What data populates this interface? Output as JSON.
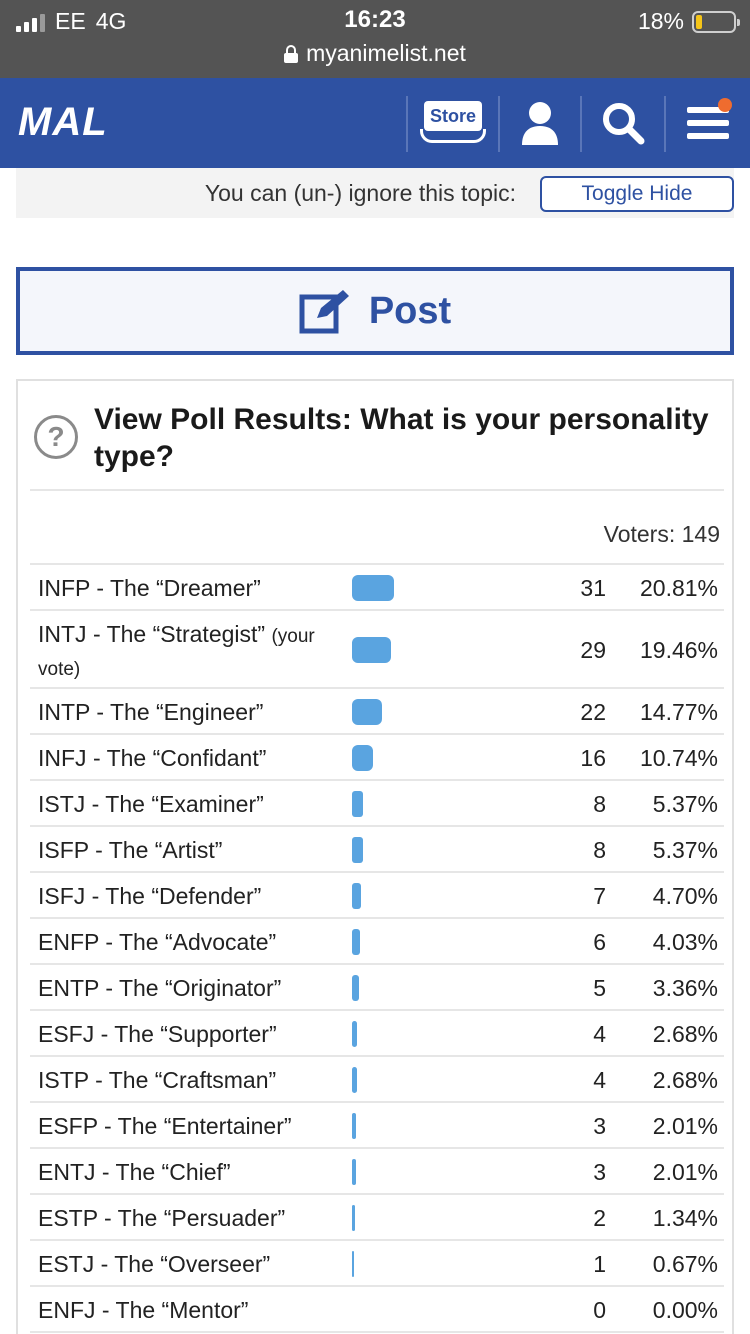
{
  "status_bar": {
    "carrier": "EE",
    "network": "4G",
    "time": "16:23",
    "battery": "18%",
    "battery_level": 0.18,
    "url": "myanimelist.net"
  },
  "header": {
    "logo": "MAL",
    "store_label": "Store",
    "icons": [
      "store-icon",
      "profile-icon",
      "search-icon",
      "menu-icon"
    ],
    "brand_color": "#2e51a2",
    "notification_color": "#ef6c2f"
  },
  "ignore_bar": {
    "text": "You can (un-) ignore this topic:",
    "button": "Toggle Hide"
  },
  "post_button": {
    "label": "Post"
  },
  "poll": {
    "title": "View Poll Results: What is your personality type?",
    "voters": "Voters: 149",
    "bar_color": "#5aa4e0",
    "options": [
      {
        "label": "INFP - The “Dreamer”",
        "note": "",
        "count": "31",
        "percent": "20.81%",
        "share": 0.2081
      },
      {
        "label": "INTJ - The “Strategist”",
        "note": "(your vote)",
        "count": "29",
        "percent": "19.46%",
        "share": 0.1946
      },
      {
        "label": "INTP - The “Engineer”",
        "note": "",
        "count": "22",
        "percent": "14.77%",
        "share": 0.1477
      },
      {
        "label": "INFJ - The “Confidant”",
        "note": "",
        "count": "16",
        "percent": "10.74%",
        "share": 0.1074
      },
      {
        "label": "ISTJ - The “Examiner”",
        "note": "",
        "count": "8",
        "percent": "5.37%",
        "share": 0.0537
      },
      {
        "label": "ISFP - The “Artist”",
        "note": "",
        "count": "8",
        "percent": "5.37%",
        "share": 0.0537
      },
      {
        "label": "ISFJ - The “Defender”",
        "note": "",
        "count": "7",
        "percent": "4.70%",
        "share": 0.047
      },
      {
        "label": "ENFP - The “Advocate”",
        "note": "",
        "count": "6",
        "percent": "4.03%",
        "share": 0.0403
      },
      {
        "label": "ENTP - The “Originator”",
        "note": "",
        "count": "5",
        "percent": "3.36%",
        "share": 0.0336
      },
      {
        "label": "ESFJ - The “Supporter”",
        "note": "",
        "count": "4",
        "percent": "2.68%",
        "share": 0.0268
      },
      {
        "label": "ISTP - The “Craftsman”",
        "note": "",
        "count": "4",
        "percent": "2.68%",
        "share": 0.0268
      },
      {
        "label": "ESFP - The “Entertainer”",
        "note": "",
        "count": "3",
        "percent": "2.01%",
        "share": 0.0201
      },
      {
        "label": "ENTJ - The “Chief”",
        "note": "",
        "count": "3",
        "percent": "2.01%",
        "share": 0.0201
      },
      {
        "label": "ESTP - The “Persuader”",
        "note": "",
        "count": "2",
        "percent": "1.34%",
        "share": 0.0134
      },
      {
        "label": "ESTJ - The “Overseer”",
        "note": "",
        "count": "1",
        "percent": "0.67%",
        "share": 0.0067
      },
      {
        "label": "ENFJ - The “Mentor”",
        "note": "",
        "count": "0",
        "percent": "0.00%",
        "share": 0.0
      }
    ]
  }
}
